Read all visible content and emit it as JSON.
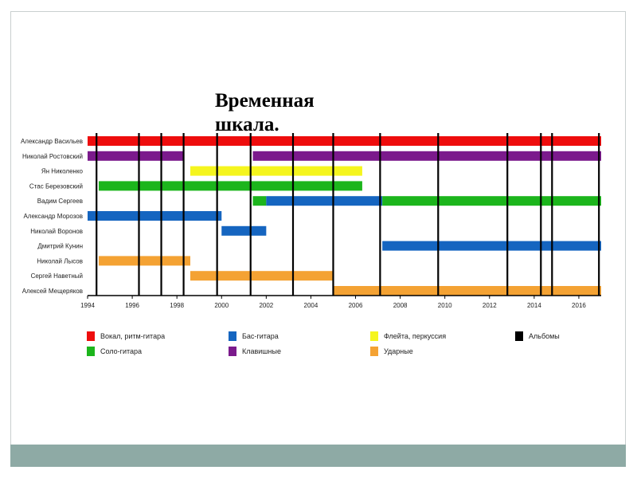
{
  "slide": {
    "title": "Временная\nшкала."
  },
  "colors": {
    "vocal": "#ee0d0d",
    "bass": "#1565c0",
    "flute": "#f5f51e",
    "albums": "#000000",
    "solo": "#1cb51c",
    "keys": "#7b1a8c",
    "drums": "#f4a233",
    "footer": "#8eaaa5"
  },
  "chart_data": {
    "type": "timeline",
    "x_ticks": [
      "1994",
      "1996",
      "1998",
      "2000",
      "2002",
      "2004",
      "2006",
      "2008",
      "2010",
      "2012",
      "2014",
      "2016"
    ],
    "x_range": [
      1994,
      2017
    ],
    "members": [
      "Александр Васильев",
      "Николай Ростовский",
      "Ян Николенко",
      "Стас Березовский",
      "Вадим Сергеев",
      "Александр Морозов",
      "Николай Воронов",
      "Дмитрий Кунин",
      "Николай Лысов",
      "Сергей Наветный",
      "Алексей Мещеряков"
    ],
    "bars": [
      {
        "member": 0,
        "role": "vocal",
        "start": 1994.0,
        "end": 2017.0
      },
      {
        "member": 1,
        "role": "keys",
        "start": 1994.0,
        "end": 1998.3
      },
      {
        "member": 1,
        "role": "keys",
        "start": 2001.4,
        "end": 2017.0
      },
      {
        "member": 2,
        "role": "flute",
        "start": 1998.6,
        "end": 2006.3
      },
      {
        "member": 3,
        "role": "solo",
        "start": 1994.5,
        "end": 2006.3
      },
      {
        "member": 4,
        "role": "solo",
        "start": 2001.4,
        "end": 2002.0
      },
      {
        "member": 4,
        "role": "bass",
        "start": 2002.0,
        "end": 2007.2
      },
      {
        "member": 4,
        "role": "solo",
        "start": 2007.2,
        "end": 2017.0
      },
      {
        "member": 5,
        "role": "bass",
        "start": 1994.0,
        "end": 2000.0
      },
      {
        "member": 6,
        "role": "bass",
        "start": 2000.0,
        "end": 2002.0
      },
      {
        "member": 7,
        "role": "bass",
        "start": 2007.2,
        "end": 2017.0
      },
      {
        "member": 8,
        "role": "drums",
        "start": 1994.5,
        "end": 1998.6
      },
      {
        "member": 9,
        "role": "drums",
        "start": 1998.6,
        "end": 2005.0
      },
      {
        "member": 10,
        "role": "drums",
        "start": 2005.0,
        "end": 2017.0
      }
    ],
    "albums": [
      1994.4,
      1996.3,
      1997.3,
      1998.3,
      1999.8,
      2001.3,
      2003.2,
      2005.0,
      2007.1,
      2009.7,
      2012.8,
      2014.3,
      2014.8,
      2016.9
    ],
    "legend": [
      {
        "role": "vocal",
        "label": "Вокал, ритм-гитара"
      },
      {
        "role": "bass",
        "label": "Бас-гитара"
      },
      {
        "role": "flute",
        "label": "Флейта, перкуссия"
      },
      {
        "role": "albums",
        "label": "Альбомы"
      },
      {
        "role": "solo",
        "label": "Соло-гитара"
      },
      {
        "role": "keys",
        "label": "Клавишные"
      },
      {
        "role": "drums",
        "label": "Ударные"
      }
    ]
  }
}
